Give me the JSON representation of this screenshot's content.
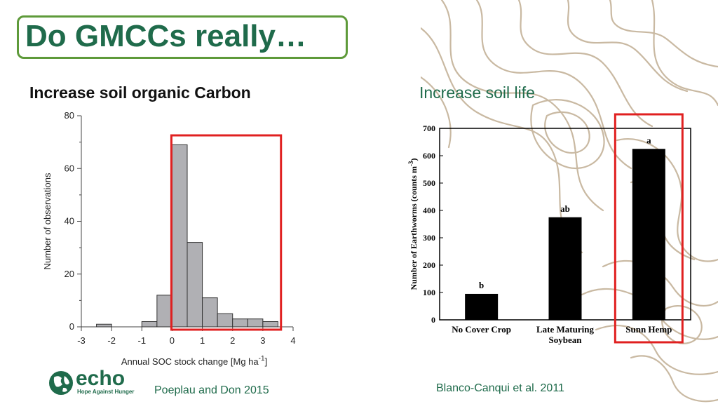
{
  "slide": {
    "title": "Do GMCCs really…",
    "left_heading": "Increase soil organic Carbon",
    "right_heading": "Increase soil life",
    "left_citation": "Poeplau and Don 2015",
    "right_citation": "Blanco-Canqui et al. 2011",
    "logo": {
      "word": "echo",
      "tagline": "Hope Against Hunger"
    },
    "colors": {
      "title_green": "#1f6b4b",
      "box_green": "#5e9a3a",
      "highlight_red": "#e02020",
      "hist_gray": "#b0b0b4",
      "topo_brown": "#c9b9a2"
    }
  },
  "chart_data": [
    {
      "type": "bar",
      "subtype": "histogram",
      "xlabel": "Annual SOC stock change [Mg ha-1]",
      "xlabel_parts": {
        "base": "Annual SOC stock change [Mg ha",
        "sup": "-1",
        "end": "]"
      },
      "ylabel": "Number of observations",
      "bin_edges": [
        -2.5,
        -2.0,
        -1.5,
        -1.0,
        -0.5,
        0.0,
        0.5,
        1.0,
        1.5,
        2.0,
        2.5,
        3.0,
        3.5
      ],
      "values": [
        1,
        0,
        0,
        2,
        12,
        69,
        32,
        11,
        5,
        3,
        3,
        2
      ],
      "xlim": [
        -3,
        4
      ],
      "ylim": [
        0,
        80
      ],
      "xticks": [
        "-3",
        "-2",
        "-1",
        "0",
        "1",
        "2",
        "3",
        "4"
      ],
      "yticks": [
        "0",
        "20",
        "40",
        "60",
        "80"
      ],
      "highlight_range": [
        0,
        3.6
      ]
    },
    {
      "type": "bar",
      "ylabel": "Number of Earthworms (counts m-3)",
      "ylabel_parts": {
        "base": "Number of Earthworms (counts m",
        "sup": "-3",
        "end": ")"
      },
      "categories": [
        "No Cover Crop",
        "Late Maturing Soybean",
        "Sunn Hemp"
      ],
      "category_lines": [
        [
          "No Cover Crop"
        ],
        [
          "Late Maturing",
          "Soybean"
        ],
        [
          "Sunn Hemp"
        ]
      ],
      "values": [
        95,
        375,
        625
      ],
      "labels": [
        "b",
        "ab",
        "a"
      ],
      "ylim": [
        0,
        700
      ],
      "yticks": [
        "0",
        "100",
        "200",
        "300",
        "400",
        "500",
        "600",
        "700"
      ],
      "highlight_category": "Sunn Hemp"
    }
  ]
}
